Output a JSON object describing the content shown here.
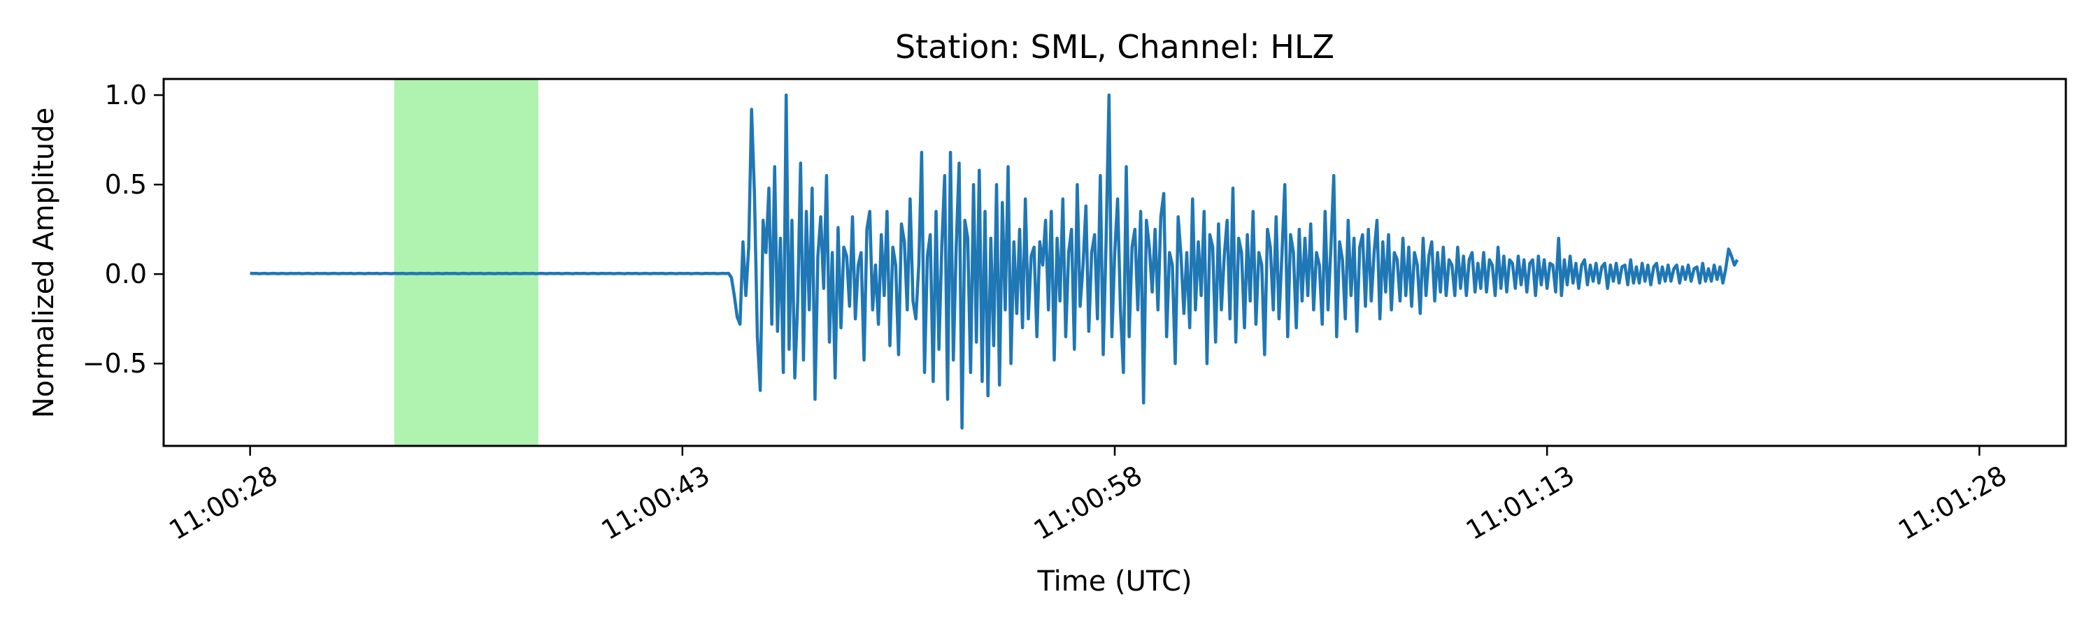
{
  "chart_data": {
    "type": "line",
    "title": "Station: SML, Channel: HLZ",
    "xlabel": "Time (UTC)",
    "ylabel": "Normalized Amplitude",
    "x_tick_labels": [
      "11:00:28",
      "11:00:43",
      "11:00:58",
      "11:01:13",
      "11:01:28"
    ],
    "x_tick_values_seconds": [
      0,
      15,
      30,
      45,
      60
    ],
    "y_tick_labels": [
      "−0.5",
      "0.0",
      "0.5",
      "1.0"
    ],
    "y_tick_values": [
      -0.5,
      0.0,
      0.5,
      1.0
    ],
    "xlim_seconds": [
      -3,
      63
    ],
    "ylim": [
      -0.96,
      1.09
    ],
    "grid": false,
    "highlight_window_seconds": [
      5,
      10
    ],
    "highlight_color": "#b0f2b0",
    "line_color": "#1f77b4",
    "series": [
      {
        "x_start_seconds": 0,
        "x_step_seconds": 0.1,
        "values": [
          0.005,
          0.003,
          0.004,
          0.002,
          0.003,
          0.004,
          0.002,
          0.003,
          0.004,
          0.003,
          0.002,
          0.004,
          0.003,
          0.002,
          0.004,
          0.003,
          0.003,
          0.004,
          0.002,
          0.003,
          0.004,
          0.003,
          0.002,
          0.004,
          0.003,
          0.003,
          0.004,
          0.002,
          0.003,
          0.004,
          0.003,
          0.002,
          0.004,
          0.003,
          0.003,
          0.004,
          0.002,
          0.003,
          0.004,
          0.003,
          0.002,
          0.004,
          0.003,
          0.003,
          0.004,
          0.002,
          0.003,
          0.004,
          0.003,
          0.002,
          0.004,
          0.003,
          0.003,
          0.004,
          0.002,
          0.003,
          0.004,
          0.003,
          0.002,
          0.004,
          0.003,
          0.003,
          0.004,
          0.002,
          0.003,
          0.004,
          0.003,
          0.002,
          0.004,
          0.003,
          0.003,
          0.004,
          0.002,
          0.003,
          0.004,
          0.003,
          0.002,
          0.004,
          0.003,
          0.003,
          0.004,
          0.002,
          0.003,
          0.004,
          0.003,
          0.002,
          0.004,
          0.003,
          0.003,
          0.004,
          0.002,
          0.003,
          0.004,
          0.003,
          0.002,
          0.004,
          0.003,
          0.003,
          0.004,
          0.002,
          0.003,
          0.004,
          0.003,
          0.002,
          0.004,
          0.003,
          0.003,
          0.004,
          0.002,
          0.003,
          0.004,
          0.003,
          0.002,
          0.004,
          0.003,
          0.003,
          0.004,
          0.002,
          0.003,
          0.004,
          0.003,
          0.002,
          0.004,
          0.003,
          0.003,
          0.004,
          0.002,
          0.003,
          0.004,
          0.003,
          0.002,
          0.004,
          0.003,
          0.003,
          0.004,
          0.002,
          0.003,
          0.004,
          0.003,
          0.002,
          0.004,
          0.003,
          0.003,
          0.004,
          0.002,
          0.003,
          0.004,
          0.003,
          0.002,
          0.004,
          0.003,
          0.003,
          0.004,
          0.002,
          0.003,
          0.004,
          0.003,
          0.002,
          0.004,
          0.003,
          0.003,
          0.004,
          0.002,
          0.003,
          0.004,
          0.003,
          0.004,
          -0.02,
          -0.12,
          -0.24,
          -0.28,
          0.18,
          -0.12,
          0.15,
          0.92,
          0.45,
          -0.35,
          -0.65,
          0.3,
          0.12,
          0.48,
          -0.28,
          0.6,
          -0.32,
          0.2,
          -0.55,
          1.0,
          -0.42,
          0.3,
          -0.58,
          -0.15,
          0.62,
          -0.48,
          0.35,
          -0.2,
          0.48,
          -0.7,
          0.1,
          0.32,
          -0.08,
          0.55,
          -0.38,
          0.12,
          -0.58,
          0.26,
          -0.3,
          0.15,
          0.1,
          -0.18,
          0.32,
          -0.25,
          0.05,
          0.12,
          -0.48,
          0.25,
          0.35,
          -0.2,
          0.05,
          -0.28,
          0.22,
          -0.12,
          0.35,
          -0.4,
          0.15,
          0.05,
          -0.45,
          0.28,
          0.18,
          -0.2,
          0.42,
          -0.15,
          -0.25,
          0.05,
          0.68,
          -0.55,
          0.1,
          0.22,
          -0.6,
          0.35,
          -0.42,
          0.15,
          0.55,
          -0.7,
          0.68,
          -0.48,
          0.15,
          0.62,
          -0.86,
          0.3,
          0.2,
          -0.55,
          0.5,
          -0.38,
          0.58,
          -0.6,
          0.35,
          -0.68,
          0.2,
          -0.4,
          0.5,
          -0.62,
          0.4,
          -0.2,
          0.6,
          -0.5,
          0.18,
          -0.22,
          0.25,
          -0.3,
          0.42,
          -0.25,
          0.1,
          0.15,
          -0.35,
          0.18,
          0.05,
          0.3,
          -0.2,
          0.35,
          -0.48,
          0.2,
          -0.15,
          0.42,
          -0.35,
          0.12,
          0.25,
          -0.42,
          0.5,
          -0.18,
          0.05,
          0.38,
          -0.32,
          0.12,
          0.22,
          -0.25,
          0.55,
          -0.45,
          0.18,
          1.0,
          -0.35,
          0.12,
          0.42,
          -0.2,
          -0.55,
          0.6,
          -0.35,
          0.15,
          0.25,
          -0.2,
          0.35,
          -0.72,
          0.3,
          0.15,
          -0.1,
          0.25,
          -0.2,
          0.32,
          0.45,
          -0.35,
          0.12,
          0.05,
          -0.5,
          0.32,
          0.1,
          -0.22,
          0.12,
          -0.3,
          0.42,
          -0.2,
          0.18,
          -0.12,
          0.35,
          -0.5,
          0.22,
          0.15,
          -0.38,
          0.28,
          -0.2,
          0.1,
          0.3,
          -0.25,
          0.48,
          -0.38,
          0.2,
          0.12,
          -0.3,
          0.22,
          -0.15,
          0.35,
          -0.28,
          0.12,
          0.05,
          -0.45,
          0.25,
          0.15,
          -0.2,
          0.32,
          -0.25,
          0.1,
          0.5,
          -0.35,
          0.22,
          0.12,
          -0.3,
          0.25,
          -0.15,
          0.2,
          -0.12,
          0.28,
          -0.2,
          0.12,
          0.05,
          -0.28,
          0.35,
          -0.2,
          0.15,
          0.55,
          -0.35,
          0.18,
          0.08,
          -0.25,
          0.3,
          -0.12,
          0.2,
          -0.32,
          0.15,
          0.22,
          -0.18,
          0.25,
          -0.15,
          0.12,
          0.3,
          -0.25,
          0.18,
          -0.1,
          0.22,
          -0.2,
          0.12,
          0.08,
          -0.15,
          0.2,
          -0.12,
          0.15,
          -0.18,
          0.12,
          0.05,
          -0.22,
          0.2,
          -0.12,
          0.1,
          0.18,
          -0.15,
          0.12,
          -0.1,
          0.15,
          -0.12,
          0.08,
          0.05,
          -0.12,
          0.15,
          -0.08,
          0.1,
          -0.12,
          0.08,
          0.12,
          -0.1,
          0.06,
          -0.08,
          0.12,
          -0.1,
          0.08,
          0.05,
          -0.12,
          0.15,
          -0.08,
          0.1,
          -0.1,
          0.08,
          0.06,
          -0.08,
          0.1,
          -0.06,
          0.08,
          -0.1,
          0.06,
          0.08,
          -0.12,
          0.1,
          -0.06,
          0.08,
          -0.08,
          0.06,
          0.05,
          -0.1,
          0.2,
          -0.12,
          0.08,
          -0.06,
          0.1,
          -0.05,
          0.06,
          -0.08,
          0.05,
          0.08,
          -0.06,
          0.05,
          -0.04,
          0.06,
          -0.05,
          0.04,
          0.06,
          -0.08,
          0.05,
          -0.04,
          0.06,
          -0.05,
          0.04,
          0.05,
          -0.06,
          0.08,
          -0.05,
          0.04,
          -0.05,
          0.06,
          -0.04,
          0.05,
          -0.06,
          0.04,
          0.06,
          -0.05,
          0.04,
          -0.04,
          0.05,
          -0.04,
          0.03,
          0.05,
          -0.05,
          0.04,
          -0.03,
          0.05,
          -0.04,
          0.03,
          0.04,
          -0.05,
          0.06,
          -0.04,
          0.03,
          -0.04,
          0.05,
          -0.03,
          0.04,
          -0.05,
          0.03,
          0.14,
          0.1,
          0.05,
          0.08
        ]
      }
    ]
  }
}
